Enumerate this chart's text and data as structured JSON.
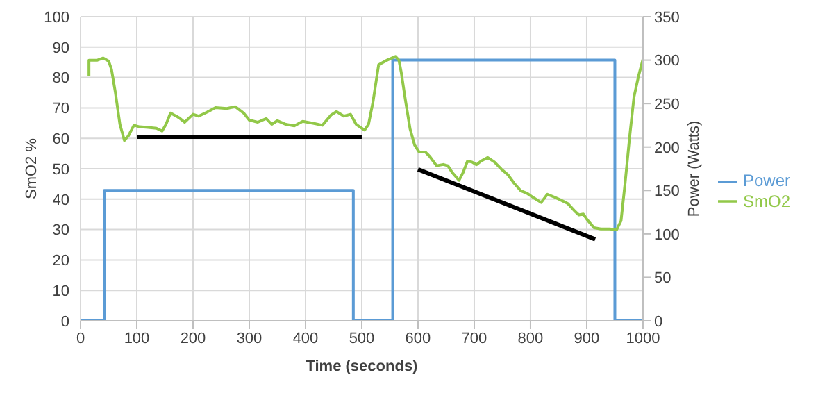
{
  "chart_data": {
    "type": "line",
    "xlabel": "Time (seconds)",
    "ylabel": "SmO2 %",
    "y2label": "Power (Watts)",
    "xlim": [
      0,
      1000
    ],
    "xticks": [
      0,
      100,
      200,
      300,
      400,
      500,
      600,
      700,
      800,
      900,
      1000
    ],
    "ylim": [
      0,
      100
    ],
    "yticks": [
      0,
      10,
      20,
      30,
      40,
      50,
      60,
      70,
      80,
      90,
      100
    ],
    "y2lim": [
      0,
      350
    ],
    "y2ticks": [
      0,
      50,
      100,
      150,
      200,
      250,
      300,
      350
    ],
    "grid": true,
    "legend": "right",
    "marker": "none",
    "line_style": "solid",
    "series": [
      {
        "name": "Power",
        "type": "step",
        "axis": "y2",
        "color": "#5b9bd5",
        "x": [
          0,
          42,
          485,
          555,
          950,
          1000
        ],
        "values": [
          0,
          150,
          0,
          300,
          0,
          0
        ]
      },
      {
        "name": "SmO2",
        "color": "#92c849",
        "x": [
          15,
          15,
          30,
          40,
          50,
          55,
          62,
          70,
          78,
          85,
          95,
          105,
          120,
          135,
          145,
          152,
          160,
          175,
          185,
          200,
          210,
          225,
          240,
          260,
          275,
          290,
          300,
          315,
          330,
          340,
          350,
          365,
          380,
          395,
          415,
          430,
          445,
          455,
          468,
          480,
          490,
          505,
          512,
          520,
          530,
          545,
          560,
          566,
          570,
          578,
          586,
          594,
          602,
          613,
          621,
          633,
          645,
          653,
          661,
          673,
          680,
          688,
          696,
          704,
          712,
          724,
          736,
          748,
          760,
          771,
          783,
          794,
          806,
          819,
          830,
          842,
          854,
          866,
          878,
          886,
          894,
          901,
          913,
          925,
          941,
          953,
          961,
          968,
          976,
          984,
          992,
          1000
        ],
        "values": [
          80.4,
          85.7,
          85.7,
          86.4,
          85.4,
          82.7,
          75,
          64.6,
          59.3,
          60.8,
          64.3,
          63.8,
          63.6,
          63.3,
          62.4,
          64.6,
          68.3,
          66.8,
          65.3,
          67.9,
          67.3,
          68.6,
          70.1,
          69.8,
          70.4,
          68.3,
          66,
          65.3,
          66.5,
          64.6,
          65.8,
          64.6,
          64.1,
          65.6,
          64.9,
          64.3,
          67.6,
          68.8,
          67.3,
          67.9,
          64.6,
          62.7,
          64.6,
          72,
          84.2,
          85.7,
          86.9,
          85.7,
          81.9,
          72.1,
          63,
          57.8,
          55.5,
          55.5,
          54,
          51,
          51.4,
          51,
          48.7,
          46.2,
          48.7,
          52.5,
          52.2,
          51.3,
          52.5,
          53.7,
          52.2,
          49.9,
          48,
          45.2,
          42.7,
          41.9,
          40.4,
          38.9,
          41.6,
          40.7,
          39.7,
          38.6,
          36.2,
          34.8,
          35.1,
          33.2,
          30.6,
          30.2,
          30.2,
          29.9,
          32.9,
          44.9,
          60,
          73.6,
          80.4,
          86
        ]
      },
      {
        "color": "#000000",
        "x": [
          100,
          500
        ],
        "values": [
          60.5,
          60.5
        ]
      },
      {
        "color": "#000000",
        "x": [
          600,
          915
        ],
        "values": [
          49.8,
          26.8
        ]
      }
    ]
  }
}
